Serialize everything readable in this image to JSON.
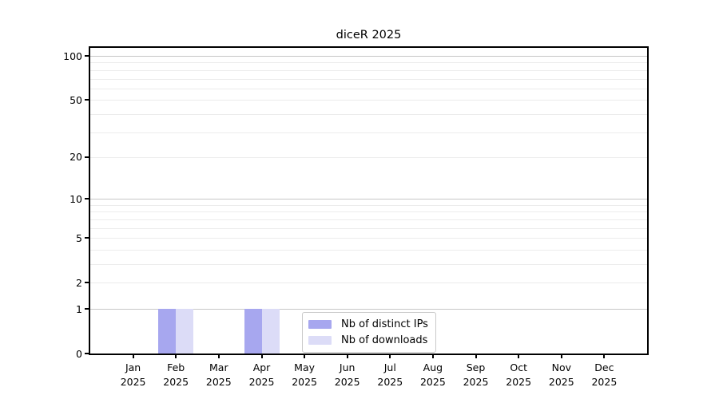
{
  "chart_data": {
    "type": "bar",
    "title": "diceR 2025",
    "x_tick_labels": [
      [
        "Jan",
        "2025"
      ],
      [
        "Feb",
        "2025"
      ],
      [
        "Mar",
        "2025"
      ],
      [
        "Apr",
        "2025"
      ],
      [
        "May",
        "2025"
      ],
      [
        "Jun",
        "2025"
      ],
      [
        "Jul",
        "2025"
      ],
      [
        "Aug",
        "2025"
      ],
      [
        "Sep",
        "2025"
      ],
      [
        "Oct",
        "2025"
      ],
      [
        "Nov",
        "2025"
      ],
      [
        "Dec",
        "2025"
      ]
    ],
    "series": [
      {
        "name": "Nb of distinct IPs",
        "color": "#a7a7ef",
        "values": [
          0,
          1,
          0,
          1,
          0,
          0,
          0,
          0,
          0,
          0,
          0,
          0
        ]
      },
      {
        "name": "Nb of downloads",
        "color": "#dcdcf7",
        "values": [
          0,
          1,
          0,
          1,
          0,
          0,
          0,
          0,
          0,
          0,
          0,
          0
        ]
      }
    ],
    "y_scale": "log1p",
    "y_max": 113.3,
    "y_tick_values": [
      0,
      1,
      2,
      5,
      10,
      20,
      50,
      100
    ],
    "grid": {
      "major_values": [
        1,
        10,
        100
      ],
      "minor_values": [
        2,
        3,
        4,
        5,
        6,
        7,
        8,
        9,
        20,
        30,
        40,
        50,
        60,
        70,
        80,
        90
      ],
      "major_color": "#c6c6c6",
      "minor_color": "#ececec"
    },
    "legend_position": "lower center inside plot",
    "axis_color": "#000000"
  }
}
